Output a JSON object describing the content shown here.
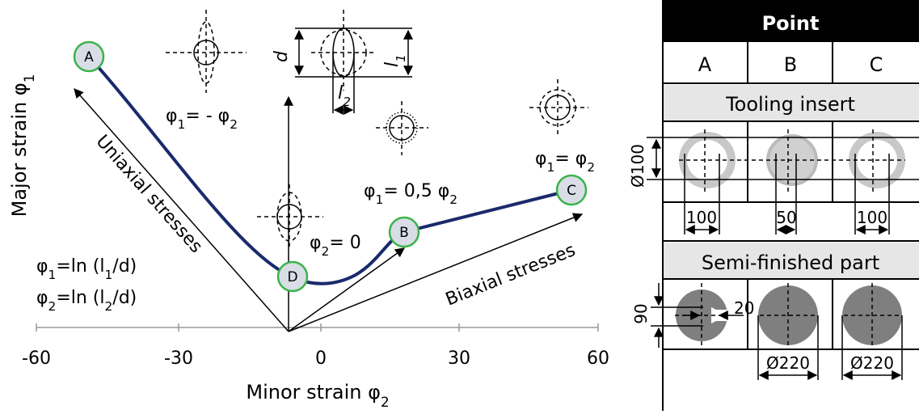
{
  "diagram": {
    "x_axis": {
      "title": [
        "Minor strain φ",
        "2"
      ],
      "ticks": [
        "-60",
        "-30",
        "0",
        "30",
        "60"
      ]
    },
    "y_axis": {
      "title": [
        "Major strain φ",
        "1"
      ]
    },
    "formulas": [
      [
        "φ",
        "1",
        "=ln (l",
        "1",
        "/d)"
      ],
      [
        "φ",
        "2",
        "=ln (l",
        "2",
        "/d)"
      ]
    ],
    "points": [
      "A",
      "B",
      "C",
      "D"
    ],
    "paths": {
      "uniaxial": "Uniaxial stresses",
      "biaxial": "Biaxial stresses"
    },
    "conditions": {
      "a": [
        "φ",
        "1",
        "= - φ",
        "2"
      ],
      "b": [
        "φ",
        "1",
        "= 0,5 φ",
        "2"
      ],
      "c": [
        "φ",
        "1",
        "= φ",
        "2"
      ],
      "d": [
        "φ",
        "2",
        "= 0"
      ]
    },
    "sketch": {
      "d": [
        "d"
      ],
      "l1": [
        "l",
        "1"
      ],
      "l2": [
        "l",
        "2"
      ]
    }
  },
  "table": {
    "header": "Point",
    "columns": [
      "A",
      "B",
      "C"
    ],
    "tooling": {
      "title": "Tooling insert",
      "diameter": "Ø100",
      "widths": [
        "100",
        "50",
        "100"
      ]
    },
    "part": {
      "title": "Semi-finished part",
      "height": "90",
      "gap": "20",
      "diameters": [
        "Ø220",
        "Ø220"
      ]
    }
  }
}
